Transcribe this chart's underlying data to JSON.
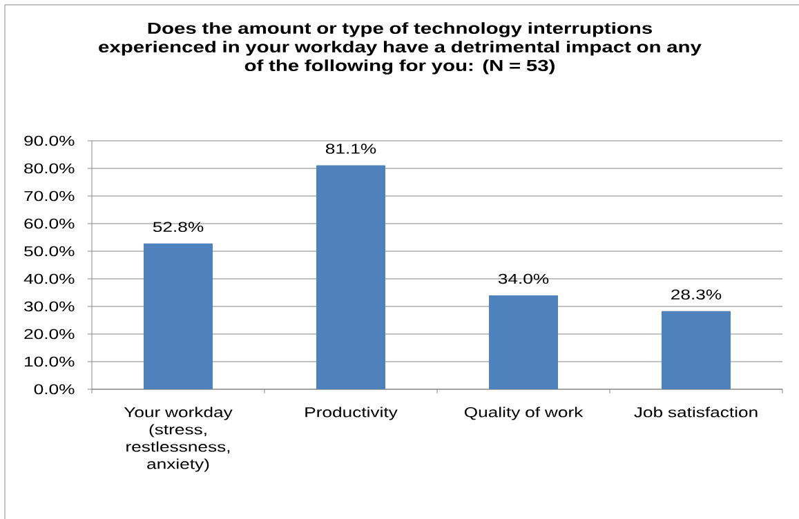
{
  "chart_data": {
    "type": "bar",
    "title": "Does the amount or type of technology interruptions experienced in your workday have a detrimental impact on any of the following for you: (N = 53)",
    "categories": [
      "Your workday (stress, restlessness, anxiety)",
      "Productivity",
      "Quality of work",
      "Job satisfaction"
    ],
    "values": [
      52.8,
      81.1,
      34.0,
      28.3
    ],
    "color": "#4f81bd",
    "value_labels": [
      "52.8%",
      "81.1%",
      "34.0%",
      "28.3%"
    ],
    "ylim": [
      0,
      90
    ],
    "yticks": [
      {
        "value": 0,
        "label": "0.0%"
      },
      {
        "value": 10,
        "label": "10.0%"
      },
      {
        "value": 20,
        "label": "20.0%"
      },
      {
        "value": 30,
        "label": "30.0%"
      },
      {
        "value": 40,
        "label": "40.0%"
      },
      {
        "value": 50,
        "label": "50.0%"
      },
      {
        "value": 60,
        "label": "60.0%"
      },
      {
        "value": 70,
        "label": "70.0%"
      },
      {
        "value": 80,
        "label": "80.0%"
      },
      {
        "value": 90,
        "label": "90.0%"
      }
    ],
    "grid": "y"
  }
}
